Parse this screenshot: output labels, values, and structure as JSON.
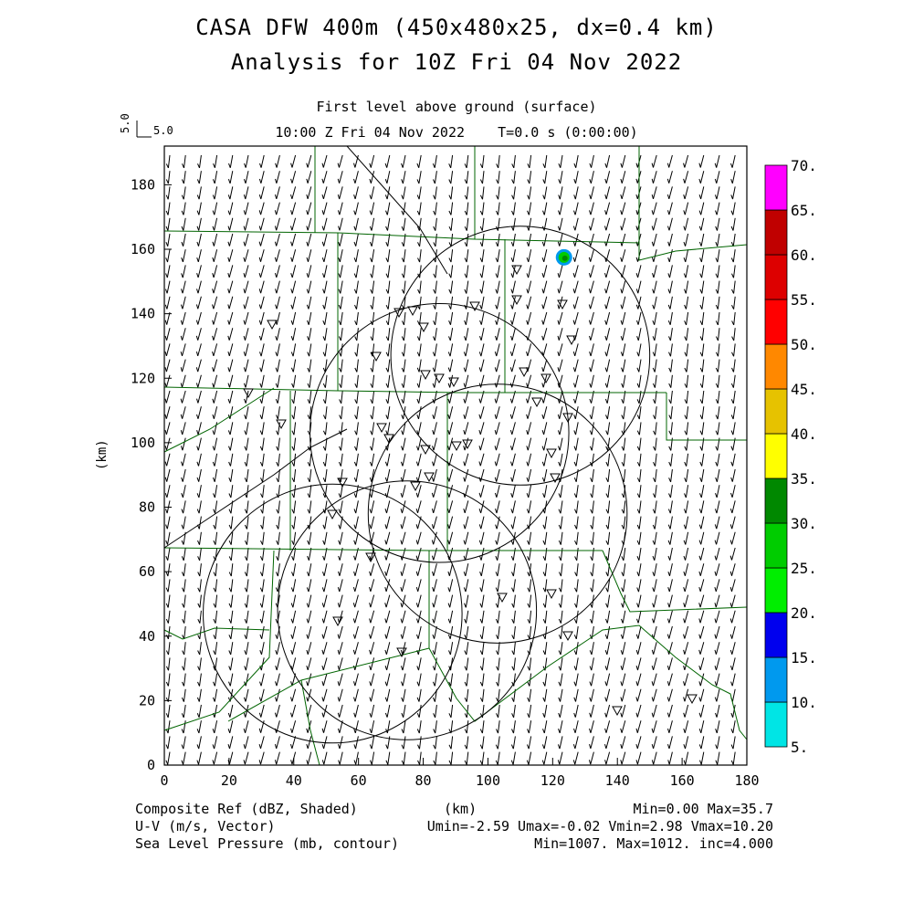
{
  "title_line1": "CASA DFW 400m (450x480x25, dx=0.4 km)",
  "title_line2": "Analysis for 10Z Fri 04 Nov 2022",
  "subtitle_line1": "First level above ground (surface)",
  "subtitle_line2": "10:00 Z Fri 04 Nov 2022    T=0.0 s (0:00:00)",
  "vector_scale": {
    "rotated_label": "5.0",
    "label": "5.0"
  },
  "x_axis": {
    "label": "(km)",
    "range": [
      0,
      180
    ],
    "ticks": [
      "0",
      "20",
      "40",
      "60",
      "80",
      "100",
      "120",
      "140",
      "160",
      "180"
    ]
  },
  "y_axis": {
    "label": "(km)",
    "range": [
      0,
      192
    ],
    "ticks": [
      "0",
      "20",
      "40",
      "60",
      "80",
      "100",
      "120",
      "140",
      "160",
      "180"
    ]
  },
  "colorbar": {
    "labels": [
      "5.",
      "10.",
      "15.",
      "20.",
      "25.",
      "30.",
      "35.",
      "40.",
      "45.",
      "50.",
      "55.",
      "60.",
      "65.",
      "70."
    ],
    "colors": [
      "#00e5e5",
      "#0099ee",
      "#0000ee",
      "#00ee00",
      "#00cc00",
      "#008800",
      "#ffff00",
      "#e6c200",
      "#ff8800",
      "#ff0000",
      "#dd0000",
      "#c00000",
      "#ff00ff"
    ]
  },
  "footer": {
    "field1": "Composite Ref (dBZ, Shaded)",
    "field1_stats": "Min=0.00 Max=35.7",
    "field2": "U-V (m/s, Vector)",
    "field2_stats": "Umin=-2.59 Umax=-0.02 Vmin=2.98 Vmax=10.20",
    "field3": "Sea Level Pressure (mb, contour)",
    "field3_stats": "Min=1007. Max=1012. inc=4.000",
    "axis_unit": "(km)"
  },
  "radar_rings_km": [
    {
      "x": 110,
      "y": 127,
      "r": 40
    },
    {
      "x": 85,
      "y": 103,
      "r": 40
    },
    {
      "x": 103,
      "y": 78,
      "r": 40
    },
    {
      "x": 52,
      "y": 47,
      "r": 40
    },
    {
      "x": 75,
      "y": 48,
      "r": 40
    }
  ],
  "echo_km": {
    "x": 123.5,
    "y": 157.5
  }
}
